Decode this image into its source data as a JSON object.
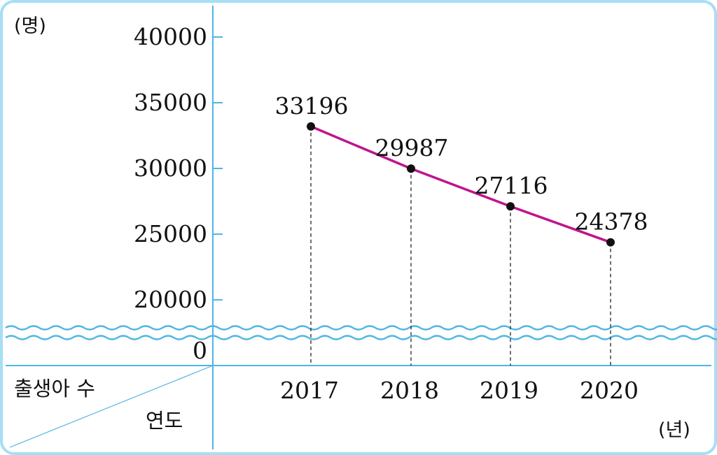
{
  "chart_data": {
    "type": "line",
    "y_unit_label": "(명)",
    "x_unit_label": "(년)",
    "corner_label_top": "출생아 수",
    "corner_label_bottom": "연도",
    "categories": [
      "2017",
      "2018",
      "2019",
      "2020"
    ],
    "series": [
      {
        "values": [
          33196,
          29987,
          27116,
          24378
        ]
      }
    ],
    "data_labels": [
      "33196",
      "29987",
      "27116",
      "24378"
    ],
    "y_ticks": [
      "40000",
      "35000",
      "30000",
      "25000",
      "20000"
    ],
    "y_zero_label": "0",
    "ylim": [
      20000,
      40000
    ],
    "axis_break": true,
    "grid": false,
    "legend": "none"
  },
  "colors": {
    "axis": "#4fb6e3",
    "line": "#c0148e",
    "point": "#111111",
    "border": "#8fd3f0",
    "dashed": "#222222"
  }
}
